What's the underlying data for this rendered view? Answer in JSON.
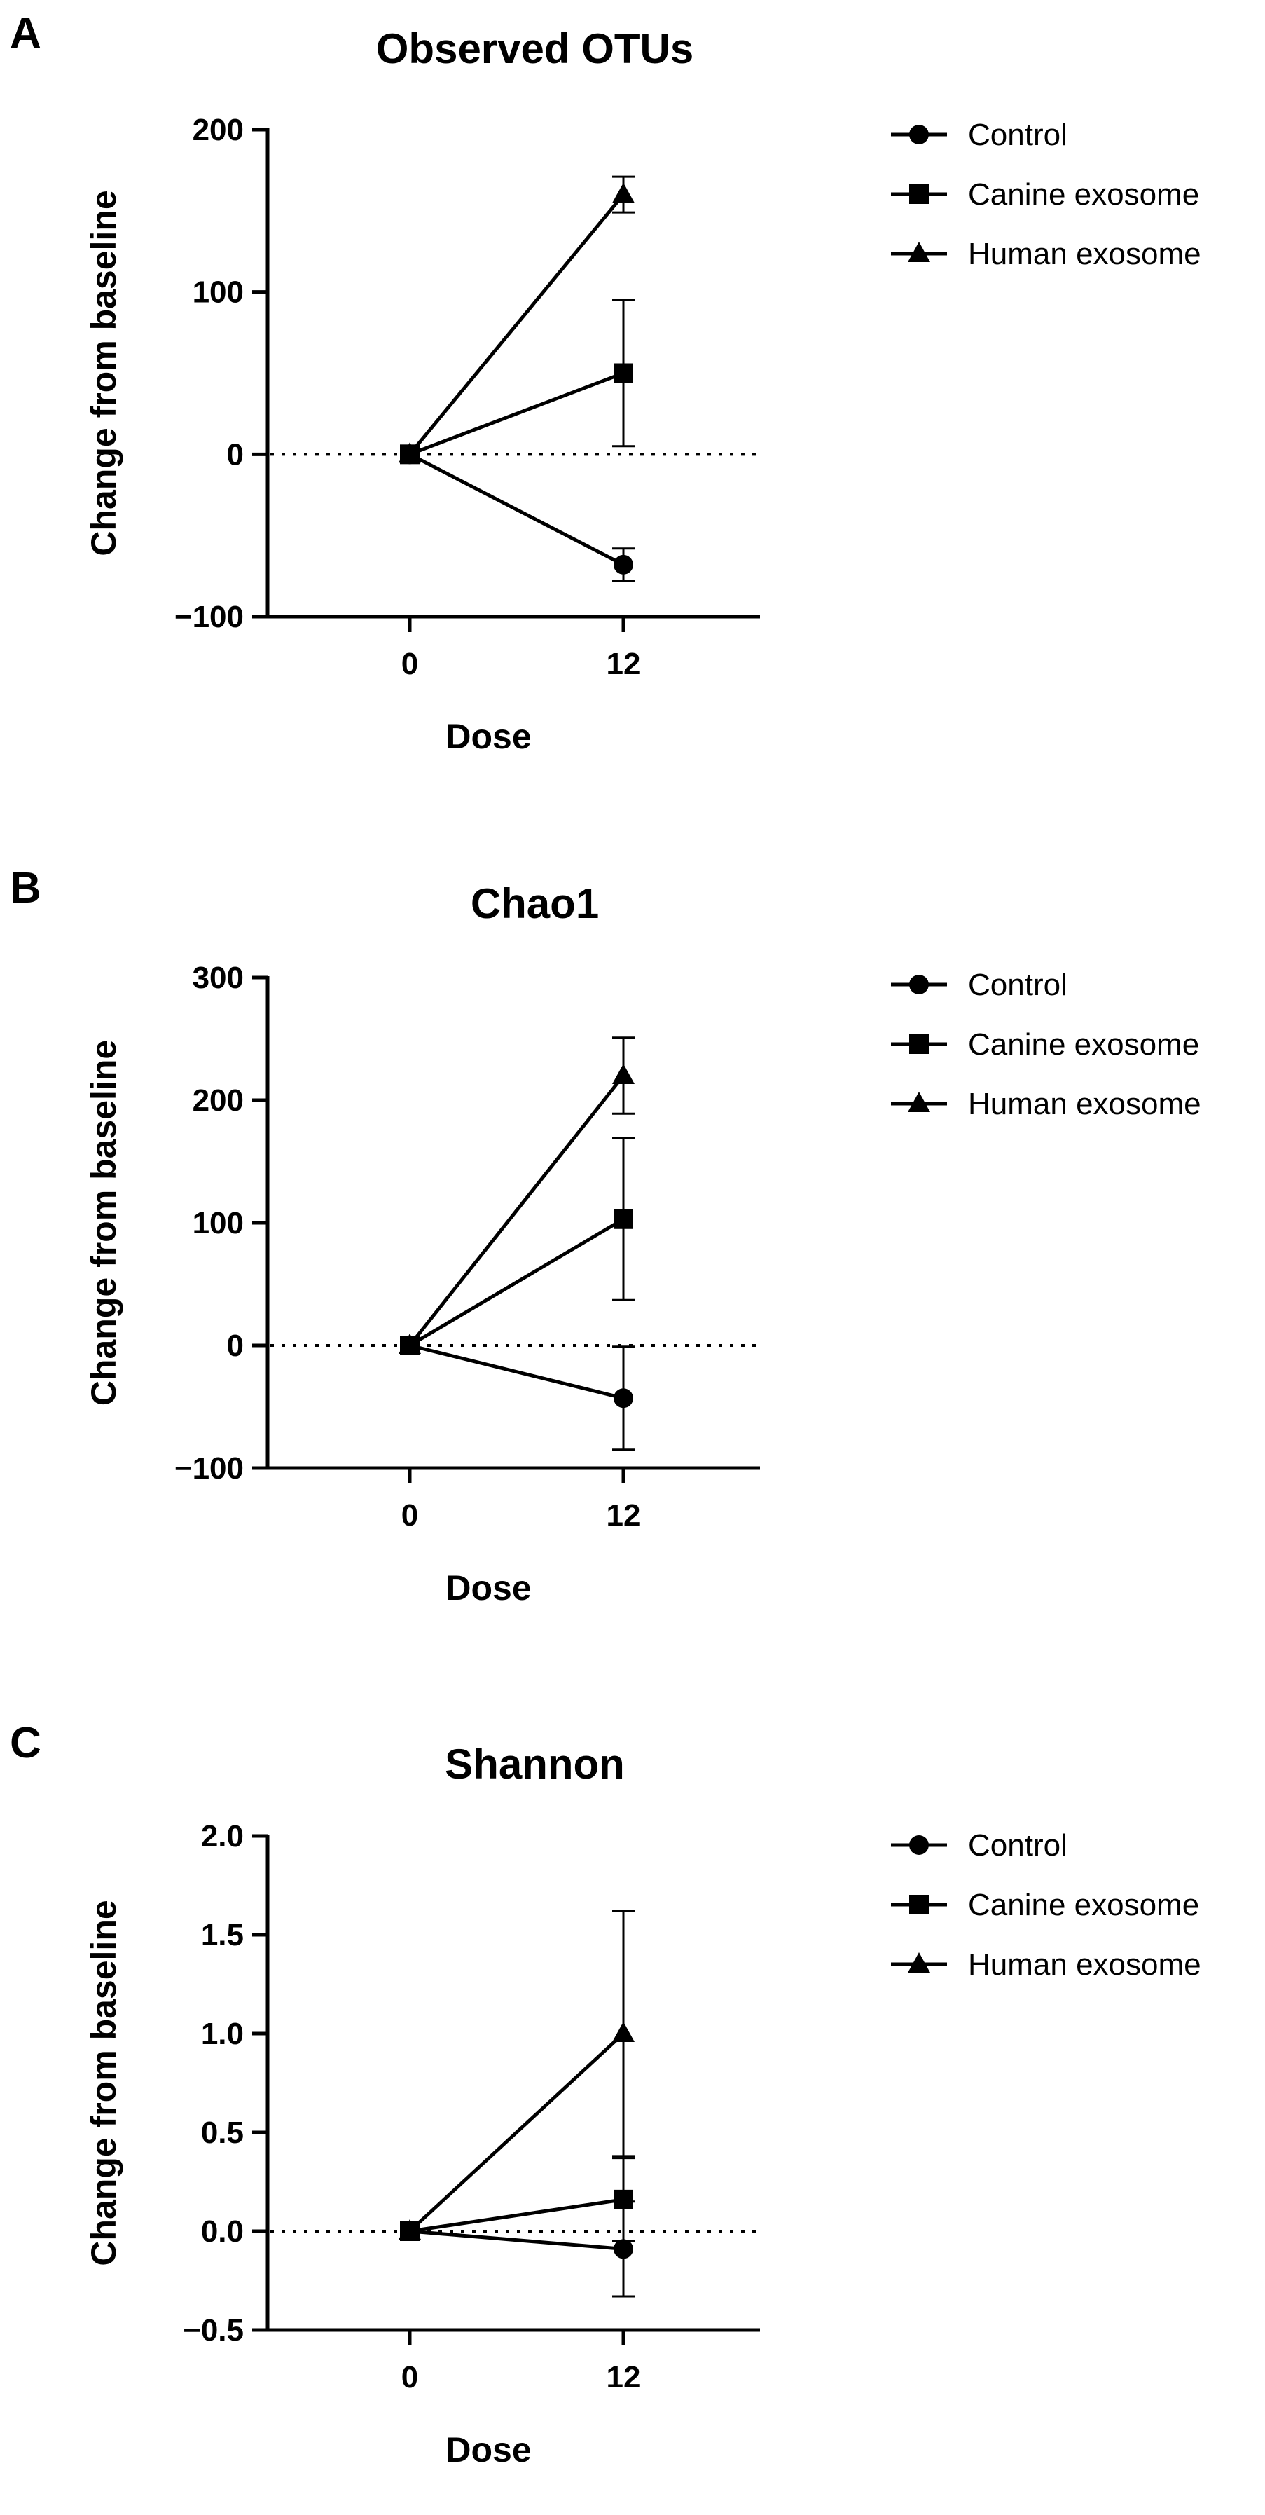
{
  "chart_data": [
    {
      "panel": "A",
      "type": "line",
      "title": "Observed OTUs",
      "xlabel": "Dose",
      "ylabel": "Change from baseline",
      "x": [
        0,
        12
      ],
      "xticklabels": [
        "0",
        "12"
      ],
      "ylim": [
        -100,
        200
      ],
      "yticks": [
        -100,
        0,
        100,
        200
      ],
      "yticklabels": [
        "-100",
        "0",
        "100",
        "200"
      ],
      "reference_line": 0,
      "legend_position": "right",
      "series": [
        {
          "name": "Control",
          "marker": "circle",
          "values": [
            0,
            -68
          ],
          "error": [
            0,
            10
          ]
        },
        {
          "name": "Canine exosome",
          "marker": "square",
          "values": [
            0,
            50
          ],
          "error": [
            0,
            45
          ]
        },
        {
          "name": "Human exosome",
          "marker": "triangle",
          "values": [
            0,
            160
          ],
          "error": [
            0,
            11
          ]
        }
      ]
    },
    {
      "panel": "B",
      "type": "line",
      "title": "Chao1",
      "xlabel": "Dose",
      "ylabel": "Change from baseline",
      "x": [
        0,
        12
      ],
      "xticklabels": [
        "0",
        "12"
      ],
      "ylim": [
        -100,
        300
      ],
      "yticks": [
        -100,
        0,
        100,
        200,
        300
      ],
      "yticklabels": [
        "-100",
        "0",
        "100",
        "200",
        "300"
      ],
      "reference_line": 0,
      "legend_position": "right",
      "series": [
        {
          "name": "Control",
          "marker": "circle",
          "values": [
            0,
            -43
          ],
          "error": [
            0,
            42
          ]
        },
        {
          "name": "Canine exosome",
          "marker": "square",
          "values": [
            0,
            103
          ],
          "error": [
            0,
            66
          ]
        },
        {
          "name": "Human exosome",
          "marker": "triangle",
          "values": [
            0,
            220
          ],
          "error": [
            0,
            31
          ]
        }
      ]
    },
    {
      "panel": "C",
      "type": "line",
      "title": "Shannon",
      "xlabel": "Dose",
      "ylabel": "Change from baseline",
      "x": [
        0,
        12
      ],
      "xticklabels": [
        "0",
        "12"
      ],
      "ylim": [
        -0.5,
        2.0
      ],
      "yticks": [
        -0.5,
        0.0,
        0.5,
        1.0,
        1.5,
        2.0
      ],
      "yticklabels": [
        "-0.5",
        "0.0",
        "0.5",
        "1.0",
        "1.5",
        "2.0"
      ],
      "reference_line": 0,
      "legend_position": "right",
      "series": [
        {
          "name": "Control",
          "marker": "circle",
          "values": [
            0,
            -0.09
          ],
          "error": [
            0,
            0.24
          ]
        },
        {
          "name": "Canine exosome",
          "marker": "square",
          "values": [
            0,
            0.16
          ],
          "error": [
            0,
            0.21
          ]
        },
        {
          "name": "Human exosome",
          "marker": "triangle",
          "values": [
            0,
            1.0
          ],
          "error": [
            0,
            0.62
          ]
        }
      ]
    }
  ]
}
